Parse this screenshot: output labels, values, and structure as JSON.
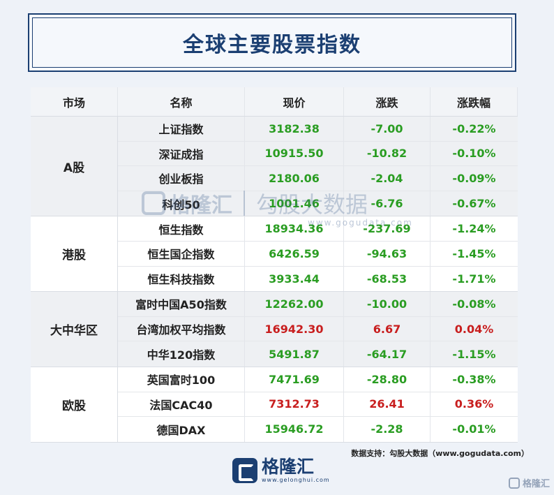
{
  "title": "全球主要股票指数",
  "headers": {
    "market": "市场",
    "name": "名称",
    "price": "现价",
    "change": "涨跌",
    "pct": "涨跌幅"
  },
  "groups": [
    {
      "market": "A股",
      "rows": [
        {
          "name": "上证指数",
          "price": "3182.38",
          "change": "-7.00",
          "pct": "-0.22%",
          "dir": "down"
        },
        {
          "name": "深证成指",
          "price": "10915.50",
          "change": "-10.82",
          "pct": "-0.10%",
          "dir": "down"
        },
        {
          "name": "创业板指",
          "price": "2180.06",
          "change": "-2.04",
          "pct": "-0.09%",
          "dir": "down"
        },
        {
          "name": "科创50",
          "price": "1001.46",
          "change": "-6.76",
          "pct": "-0.67%",
          "dir": "down"
        }
      ]
    },
    {
      "market": "港股",
      "rows": [
        {
          "name": "恒生指数",
          "price": "18934.36",
          "change": "-237.69",
          "pct": "-1.24%",
          "dir": "down"
        },
        {
          "name": "恒生国企指数",
          "price": "6426.59",
          "change": "-94.63",
          "pct": "-1.45%",
          "dir": "down"
        },
        {
          "name": "恒生科技指数",
          "price": "3933.44",
          "change": "-68.53",
          "pct": "-1.71%",
          "dir": "down"
        }
      ]
    },
    {
      "market": "大中华区",
      "rows": [
        {
          "name": "富时中国A50指数",
          "price": "12262.00",
          "change": "-10.00",
          "pct": "-0.08%",
          "dir": "down"
        },
        {
          "name": "台湾加权平均指数",
          "price": "16942.30",
          "change": "6.67",
          "pct": "0.04%",
          "dir": "up"
        },
        {
          "name": "中华120指数",
          "price": "5491.87",
          "change": "-64.17",
          "pct": "-1.15%",
          "dir": "down"
        }
      ]
    },
    {
      "market": "欧股",
      "rows": [
        {
          "name": "英国富时100",
          "price": "7471.69",
          "change": "-28.80",
          "pct": "-0.38%",
          "dir": "down"
        },
        {
          "name": "法国CAC40",
          "price": "7312.73",
          "change": "26.41",
          "pct": "0.36%",
          "dir": "up"
        },
        {
          "name": "德国DAX",
          "price": "15946.72",
          "change": "-2.28",
          "pct": "-0.01%",
          "dir": "down"
        }
      ]
    }
  ],
  "source": "数据支持：勾股大数据（www.gogudata.com）",
  "logo": {
    "name": "格隆汇",
    "url": "www.gelonghui.com"
  },
  "watermark": {
    "name": "格隆汇",
    "brand": "勾股大数据",
    "url": "www.gogudata.com"
  },
  "corner_text": "格隆汇",
  "colors": {
    "up": "#c81e1e",
    "down": "#2a9d22",
    "brand": "#1b3f72"
  }
}
